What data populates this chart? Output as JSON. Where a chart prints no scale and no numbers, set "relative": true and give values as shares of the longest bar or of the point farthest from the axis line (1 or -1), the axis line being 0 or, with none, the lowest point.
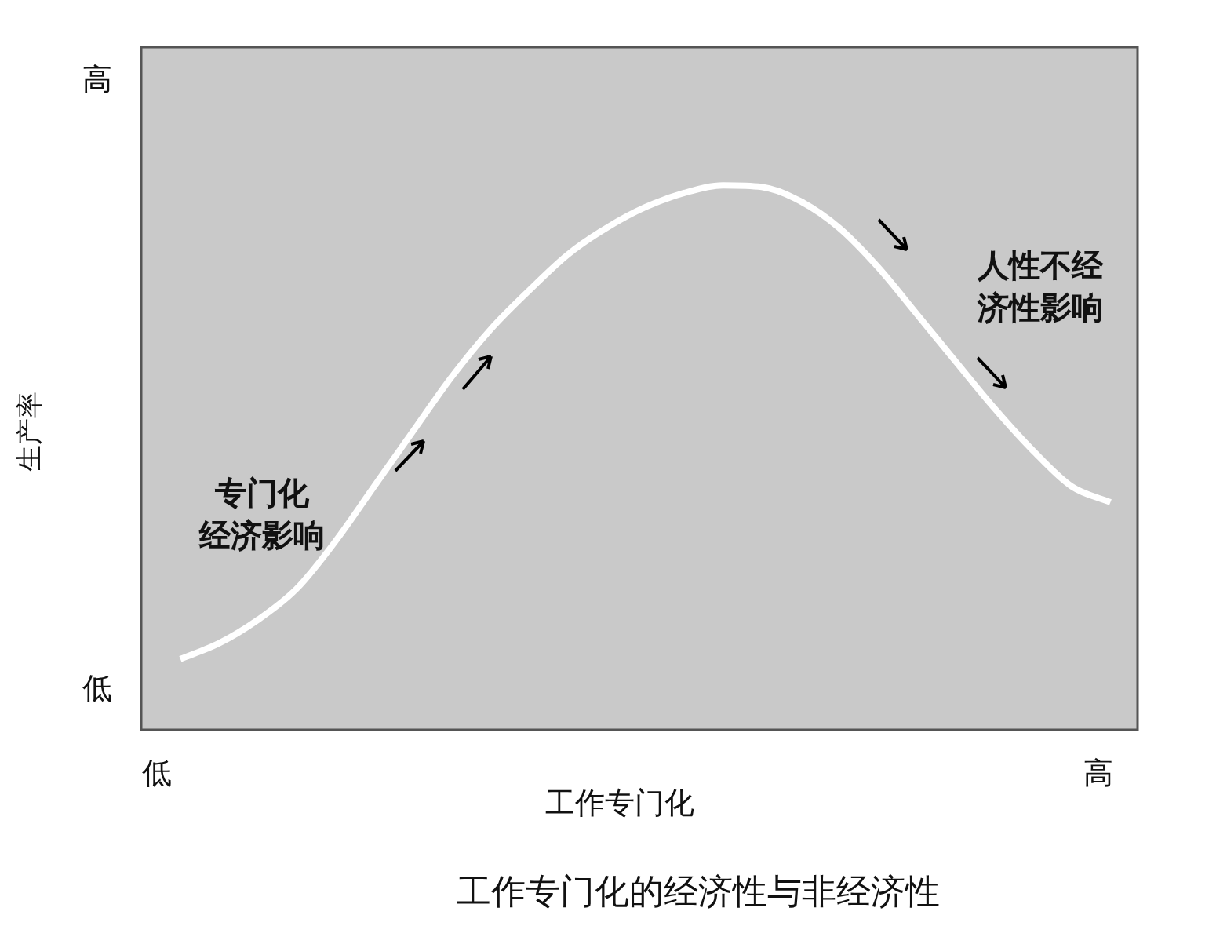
{
  "chart_data": {
    "type": "line",
    "title": "工作专门化的经济性与非经济性",
    "xlabel": "工作专门化",
    "ylabel": "生产率",
    "relative": true,
    "legend": false,
    "marker": "none",
    "color": "#ffffff",
    "categories": [
      null,
      null,
      null,
      null,
      null,
      null,
      null,
      null,
      null,
      null,
      null,
      null,
      null,
      null,
      null,
      null,
      null,
      null,
      null,
      null,
      null,
      null,
      null,
      null,
      null
    ],
    "values": [
      0.13,
      0.159,
      0.202,
      0.259,
      0.346,
      0.447,
      0.548,
      0.648,
      0.735,
      0.807,
      0.873,
      0.922,
      0.96,
      0.986,
      1,
      0.997,
      0.971,
      0.922,
      0.85,
      0.764,
      0.677,
      0.591,
      0.513,
      0.447,
      0.418
    ],
    "annotations": [
      "低",
      "高",
      "低",
      "高",
      "专门化",
      "经济影响",
      "人性不经",
      "济性影响"
    ]
  }
}
